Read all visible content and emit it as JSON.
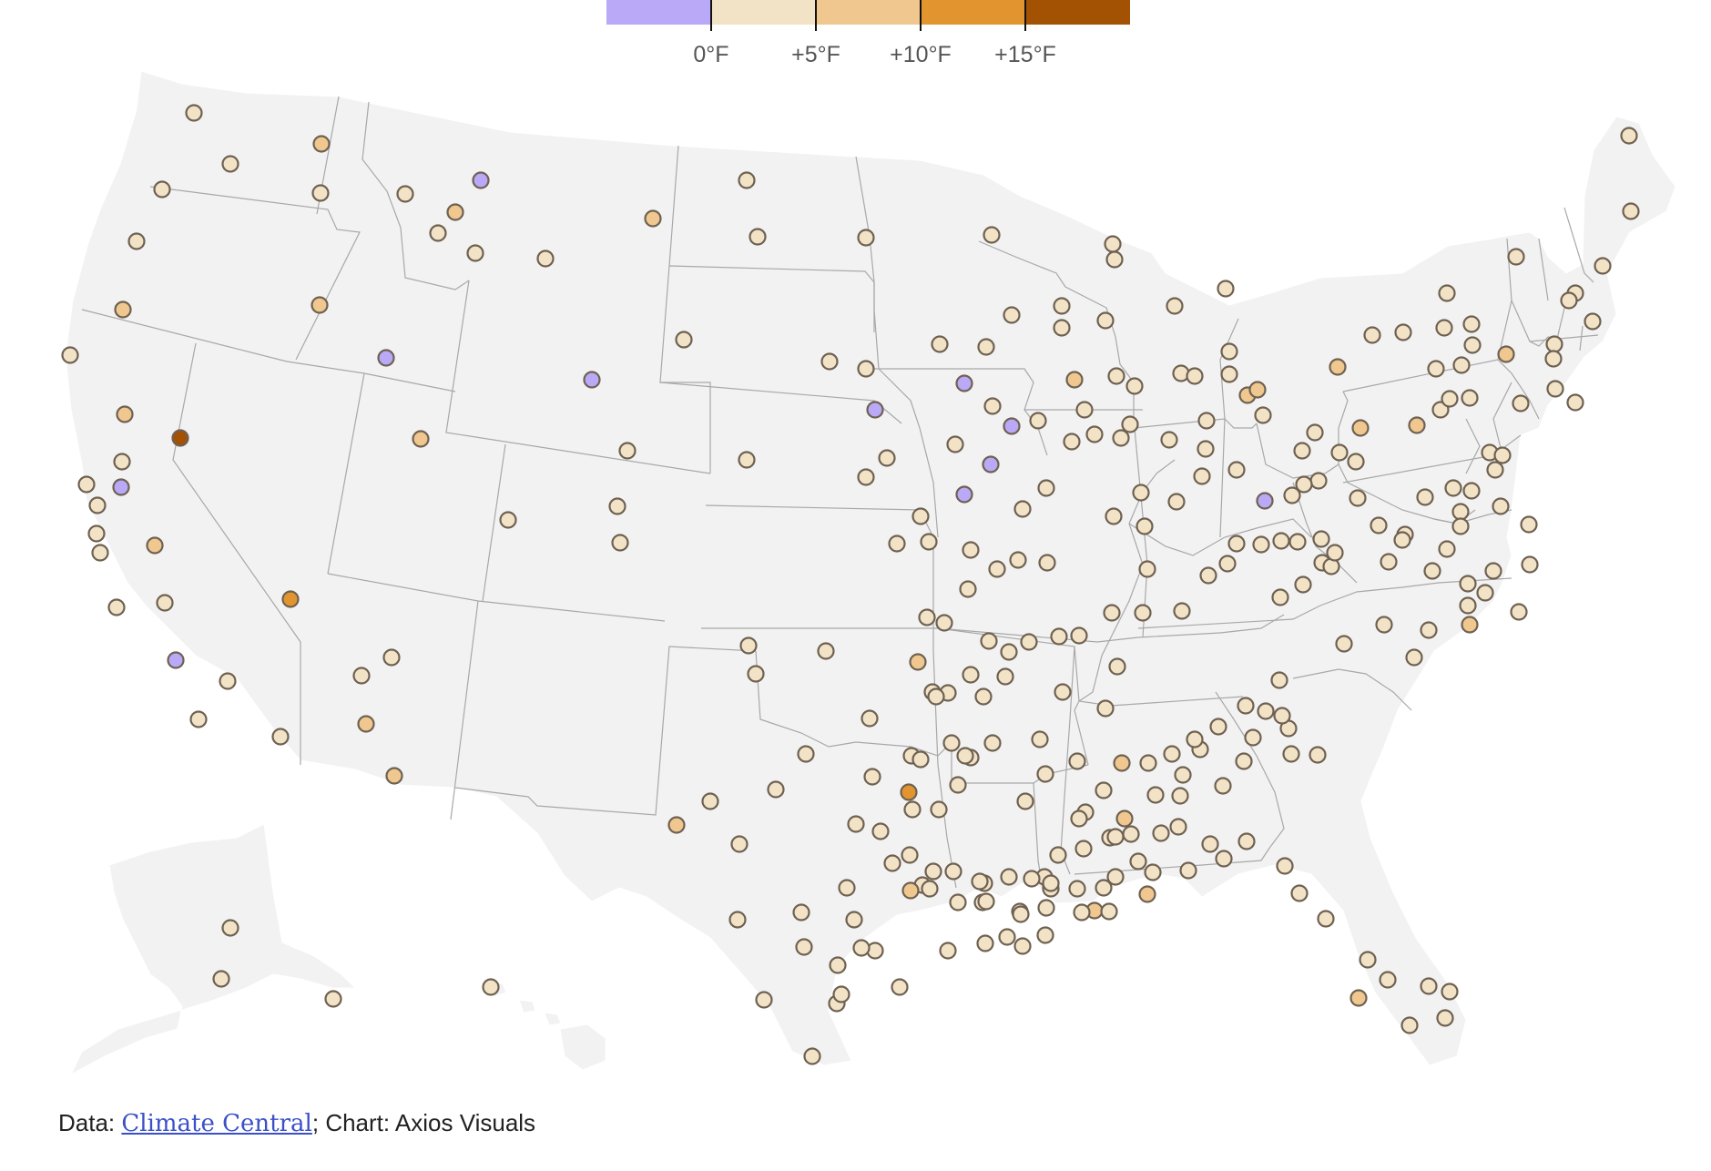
{
  "legend": {
    "bins": [
      {
        "color": "#b9a9f7"
      },
      {
        "color": "#f2e2c6"
      },
      {
        "color": "#efc78f"
      },
      {
        "color": "#e2942f"
      },
      {
        "color": "#a35103"
      }
    ],
    "ticks": [
      "0°F",
      "+5°F",
      "+10°F",
      "+15°F"
    ]
  },
  "colors": {
    "land": "#f2f2f2",
    "border": "#a8a8a8",
    "dot_stroke": "#6e6152"
  },
  "source": {
    "prefix": "Data: ",
    "link_text": "Climate Central",
    "suffix": "; Chart: Axios Visuals"
  }
}
